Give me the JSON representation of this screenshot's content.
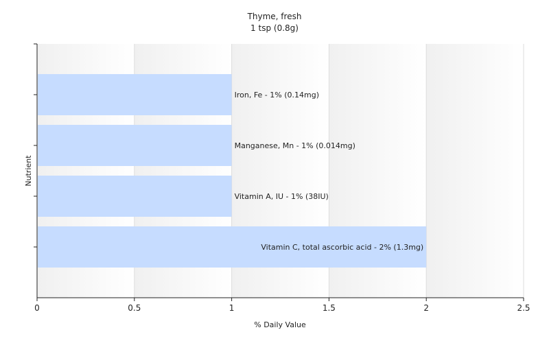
{
  "chart_data": {
    "type": "bar",
    "orientation": "horizontal",
    "title": "Thyme, fresh",
    "subtitle": "1 tsp (0.8g)",
    "xlabel": "% Daily Value",
    "ylabel": "Nutrient",
    "xlim": [
      0,
      2.5
    ],
    "xticks": [
      "0",
      "0.5",
      "1",
      "1.5",
      "2",
      "2.5"
    ],
    "grid": true,
    "bar_color": "#c6dcff",
    "categories": [
      "Iron, Fe - 1% (0.14mg)",
      "Manganese, Mn - 1% (0.014mg)",
      "Vitamin A, IU - 1% (38IU)",
      "Vitamin C, total ascorbic acid - 2% (1.3mg)"
    ],
    "values": [
      1,
      1,
      1,
      2
    ]
  }
}
